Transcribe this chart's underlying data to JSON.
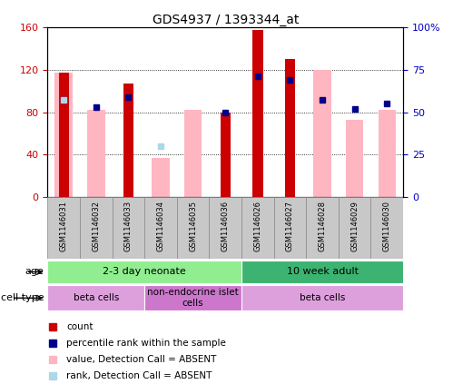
{
  "title": "GDS4937 / 1393344_at",
  "samples": [
    "GSM1146031",
    "GSM1146032",
    "GSM1146033",
    "GSM1146034",
    "GSM1146035",
    "GSM1146036",
    "GSM1146026",
    "GSM1146027",
    "GSM1146028",
    "GSM1146029",
    "GSM1146030"
  ],
  "red_bars": [
    117,
    0,
    107,
    0,
    0,
    80,
    157,
    130,
    0,
    0,
    0
  ],
  "pink_bars": [
    117,
    82,
    0,
    37,
    82,
    0,
    0,
    0,
    120,
    73,
    82
  ],
  "blue_squares": [
    57,
    53,
    59,
    0,
    0,
    50,
    71,
    69,
    57,
    52,
    55
  ],
  "lightblue_squares": [
    57,
    0,
    0,
    30,
    0,
    0,
    0,
    0,
    0,
    0,
    0
  ],
  "ylim_left": [
    0,
    160
  ],
  "ylim_right": [
    0,
    100
  ],
  "yticks_left": [
    0,
    40,
    80,
    120,
    160
  ],
  "ytick_labels_left": [
    "0",
    "40",
    "80",
    "120",
    "160"
  ],
  "yticks_right": [
    0,
    25,
    50,
    75,
    100
  ],
  "ytick_labels_right": [
    "0",
    "25",
    "50",
    "75",
    "100%"
  ],
  "age_groups": [
    {
      "label": "2-3 day neonate",
      "start": 0,
      "end": 6,
      "color": "#90EE90"
    },
    {
      "label": "10 week adult",
      "start": 6,
      "end": 11,
      "color": "#3CB371"
    }
  ],
  "cell_type_groups": [
    {
      "label": "beta cells",
      "start": 0,
      "end": 3,
      "color": "#DDA0DD"
    },
    {
      "label": "non-endocrine islet\ncells",
      "start": 3,
      "end": 6,
      "color": "#CC77CC"
    },
    {
      "label": "beta cells",
      "start": 6,
      "end": 11,
      "color": "#DDA0DD"
    }
  ],
  "legend_items": [
    {
      "color": "#CC0000",
      "label": "count"
    },
    {
      "color": "#00008B",
      "label": "percentile rank within the sample"
    },
    {
      "color": "#FFB6C1",
      "label": "value, Detection Call = ABSENT"
    },
    {
      "color": "#ADD8E6",
      "label": "rank, Detection Call = ABSENT"
    }
  ],
  "red_color": "#CC0000",
  "pink_color": "#FFB6C1",
  "blue_color": "#00008B",
  "lightblue_color": "#ADD8E6",
  "background_color": "#ffffff",
  "axis_color_left": "#CC0000",
  "axis_color_right": "#0000CC",
  "tick_box_color": "#C8C8C8",
  "tick_box_edge": "#888888"
}
